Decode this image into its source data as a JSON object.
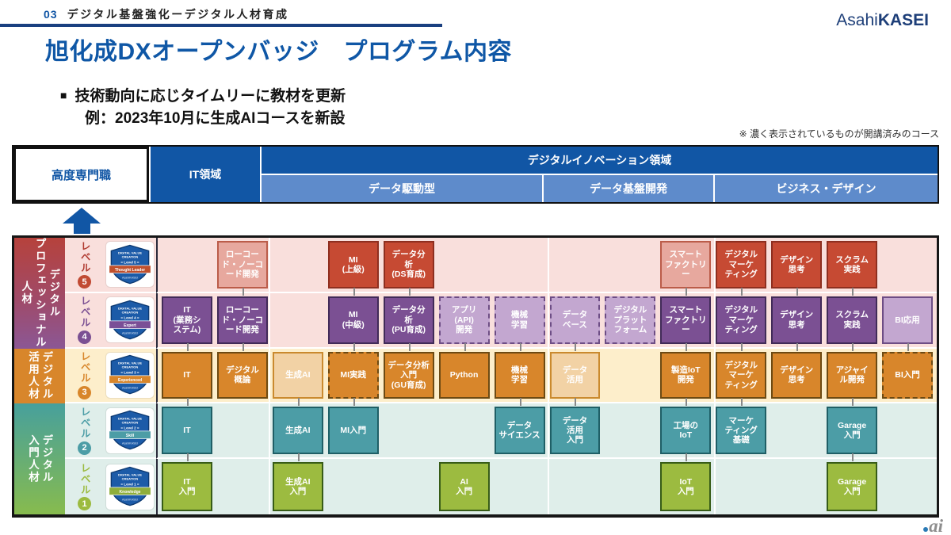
{
  "page": {
    "kicker_num": "03",
    "kicker_text": "デジタル基盤強化ーデジタル人材育成",
    "logo_light": "Asahi",
    "logo_bold": "KASEI",
    "title": "旭化成DXオープンバッジ　プログラム内容",
    "bullet_marker": "■",
    "bullet1": "技術動向に応じタイムリーに教材を更新",
    "bullet2": "例：2023年10月に生成AIコースを新設",
    "note": "※ 濃く表示されているものが開講済みのコース",
    "watermark": "ai"
  },
  "colors": {
    "brand_blue": "#1156a5",
    "sub_blue": "#5e8bcb",
    "title_blue": "#0f57a6",
    "level5_red": "#c64a33",
    "level4_purple": "#7b5093",
    "level3_orange": "#d8862b",
    "level2_teal": "#4c9da6",
    "level1_green": "#9cbb40"
  },
  "header_table": {
    "col_expert": "高度専門職",
    "col_it": "IT領域",
    "col_di": "デジタルイノベーション領域",
    "sub": [
      {
        "label": "データ駆動型"
      },
      {
        "label": "データ基盤開発"
      },
      {
        "label": "ビジネス・デザイン"
      }
    ]
  },
  "matrix": {
    "categories": [
      {
        "theme": "pro",
        "rows": [
          0,
          1
        ],
        "label": "デジタル\nプロフェッショナル\n人材"
      },
      {
        "theme": "use",
        "rows": [
          2
        ],
        "label": "デジタル\n活用人材"
      },
      {
        "theme": "entry",
        "rows": [
          3,
          4
        ],
        "label": "デジタル\n入門人材"
      }
    ],
    "rows": [
      {
        "level": 5,
        "level_label": "レベル",
        "theme": "l5",
        "badge": {
          "line1": "DIGITAL VALUE",
          "line2": "CREATION",
          "level": "Level 5",
          "name": "Thought Leader",
          "brand": "AsahiKASEI",
          "color": "#c0502d"
        },
        "courses": [
          {
            "col": 2,
            "label": "ローコード・ノーコード開発",
            "state": "faded"
          },
          {
            "col": 4,
            "label": "MI\n(上級)"
          },
          {
            "col": 5,
            "label": "データ分\n析\n(DS育成)"
          },
          {
            "col": 10,
            "label": "スマート\nファクトリ\nー",
            "state": "faded"
          },
          {
            "col": 11,
            "label": "デジタル\nマーケ\nティング"
          },
          {
            "col": 12,
            "label": "デザイン\n思考"
          },
          {
            "col": 13,
            "label": "スクラム\n実践"
          }
        ]
      },
      {
        "level": 4,
        "level_label": "レベル",
        "theme": "l4",
        "badge": {
          "line1": "DIGITAL VALUE",
          "line2": "CREATION",
          "level": "Level 4",
          "name": "Expert",
          "brand": "AsahiKASEI",
          "color": "#7a4f96"
        },
        "courses": [
          {
            "col": 1,
            "label": "IT\n(業務シ\nステム)"
          },
          {
            "col": 2,
            "label": "ローコー\nド・ノーコ\nード開発",
            "conn": true
          },
          {
            "col": 4,
            "label": "MI\n(中級)",
            "conn": true
          },
          {
            "col": 5,
            "label": "データ分\n析\n(PU育成)",
            "conn": true
          },
          {
            "col": 6,
            "label": "アプリ\n(API)\n開発",
            "state": "faded",
            "dashed": true
          },
          {
            "col": 7,
            "label": "機械\n学習",
            "state": "faded",
            "dashed": true
          },
          {
            "col": 8,
            "label": "データ\nベース",
            "state": "faded",
            "dashed": true
          },
          {
            "col": 9,
            "label": "デジタル\nプラット\nフォーム",
            "state": "faded",
            "dashed": true
          },
          {
            "col": 10,
            "label": "スマート\nファクトリ\nー",
            "conn": true
          },
          {
            "col": 11,
            "label": "デジタル\nマーケ\nティング",
            "conn": true
          },
          {
            "col": 12,
            "label": "デザイン\n思考",
            "conn": true
          },
          {
            "col": 13,
            "label": "スクラム\n実践",
            "conn": true
          },
          {
            "col": 14,
            "label": "BI応用",
            "state": "faded"
          }
        ]
      },
      {
        "level": 3,
        "level_label": "レベル",
        "theme": "l3",
        "badge": {
          "line1": "DIGITAL VALUE",
          "line2": "CREATION",
          "level": "Level 3",
          "name": "Experienced",
          "brand": "AsahiKASEI",
          "color": "#d8862b"
        },
        "courses": [
          {
            "col": 1,
            "label": "IT",
            "conn": true
          },
          {
            "col": 2,
            "label": "デジタル\n概論",
            "conn": true
          },
          {
            "col": 3,
            "label": "生成AI",
            "state": "faded"
          },
          {
            "col": 4,
            "label": "MI実践",
            "dashed": true,
            "conn": true
          },
          {
            "col": 5,
            "label": "データ分析\n入門\n(GU育成)",
            "conn": true
          },
          {
            "col": 6,
            "label": "Python",
            "conn": true
          },
          {
            "col": 7,
            "label": "機械\n学習",
            "conn": true
          },
          {
            "col": 8,
            "label": "データ\n活用",
            "state": "faded",
            "conn": true
          },
          {
            "col": 10,
            "label": "製造IoT\n開発",
            "conn": true
          },
          {
            "col": 11,
            "label": "デジタル\nマーケ\nティング",
            "conn": true
          },
          {
            "col": 12,
            "label": "デザイン\n思考",
            "conn": true
          },
          {
            "col": 13,
            "label": "アジャイ\nル開発",
            "conn": true
          },
          {
            "col": 14,
            "label": "BI入門",
            "dashed": true,
            "conn": true
          }
        ]
      },
      {
        "level": 2,
        "level_label": "レベル",
        "theme": "l2",
        "badge": {
          "line1": "DIGITAL VALUE",
          "line2": "CREATION",
          "level": "Level 2",
          "name": "Skill",
          "brand": "AsahiKASEI",
          "color": "#4c9da6"
        },
        "courses": [
          {
            "col": 1,
            "label": "IT",
            "conn": true
          },
          {
            "col": 3,
            "label": "生成AI",
            "conn": true
          },
          {
            "col": 4,
            "label": "MI入門",
            "conn": true
          },
          {
            "col": 7,
            "label": "データ\nサイエンス",
            "conn": true
          },
          {
            "col": 8,
            "label": "データ\n活用\n入門",
            "conn": true
          },
          {
            "col": 10,
            "label": "工場の\nIoT",
            "conn": true
          },
          {
            "col": 11,
            "label": "マーケ\nティング\n基礎",
            "conn": true
          },
          {
            "col": 13,
            "label": "Garage\n入門",
            "conn": true
          }
        ]
      },
      {
        "level": 1,
        "level_label": "レベル",
        "theme": "l1",
        "badge": {
          "line1": "DIGITAL VALUE",
          "line2": "CREATION",
          "level": "Level 1",
          "name": "Knowledge",
          "brand": "AsahiKASEI",
          "color": "#8fae3a"
        },
        "courses": [
          {
            "col": 1,
            "label": "IT\n入門",
            "conn": true
          },
          {
            "col": 3,
            "label": "生成AI\n入門",
            "conn": true
          },
          {
            "col": 6,
            "label": "AI\n入門"
          },
          {
            "col": 10,
            "label": "IoT\n入門",
            "conn": true
          },
          {
            "col": 13,
            "label": "Garage\n入門",
            "conn": true
          }
        ]
      }
    ]
  }
}
